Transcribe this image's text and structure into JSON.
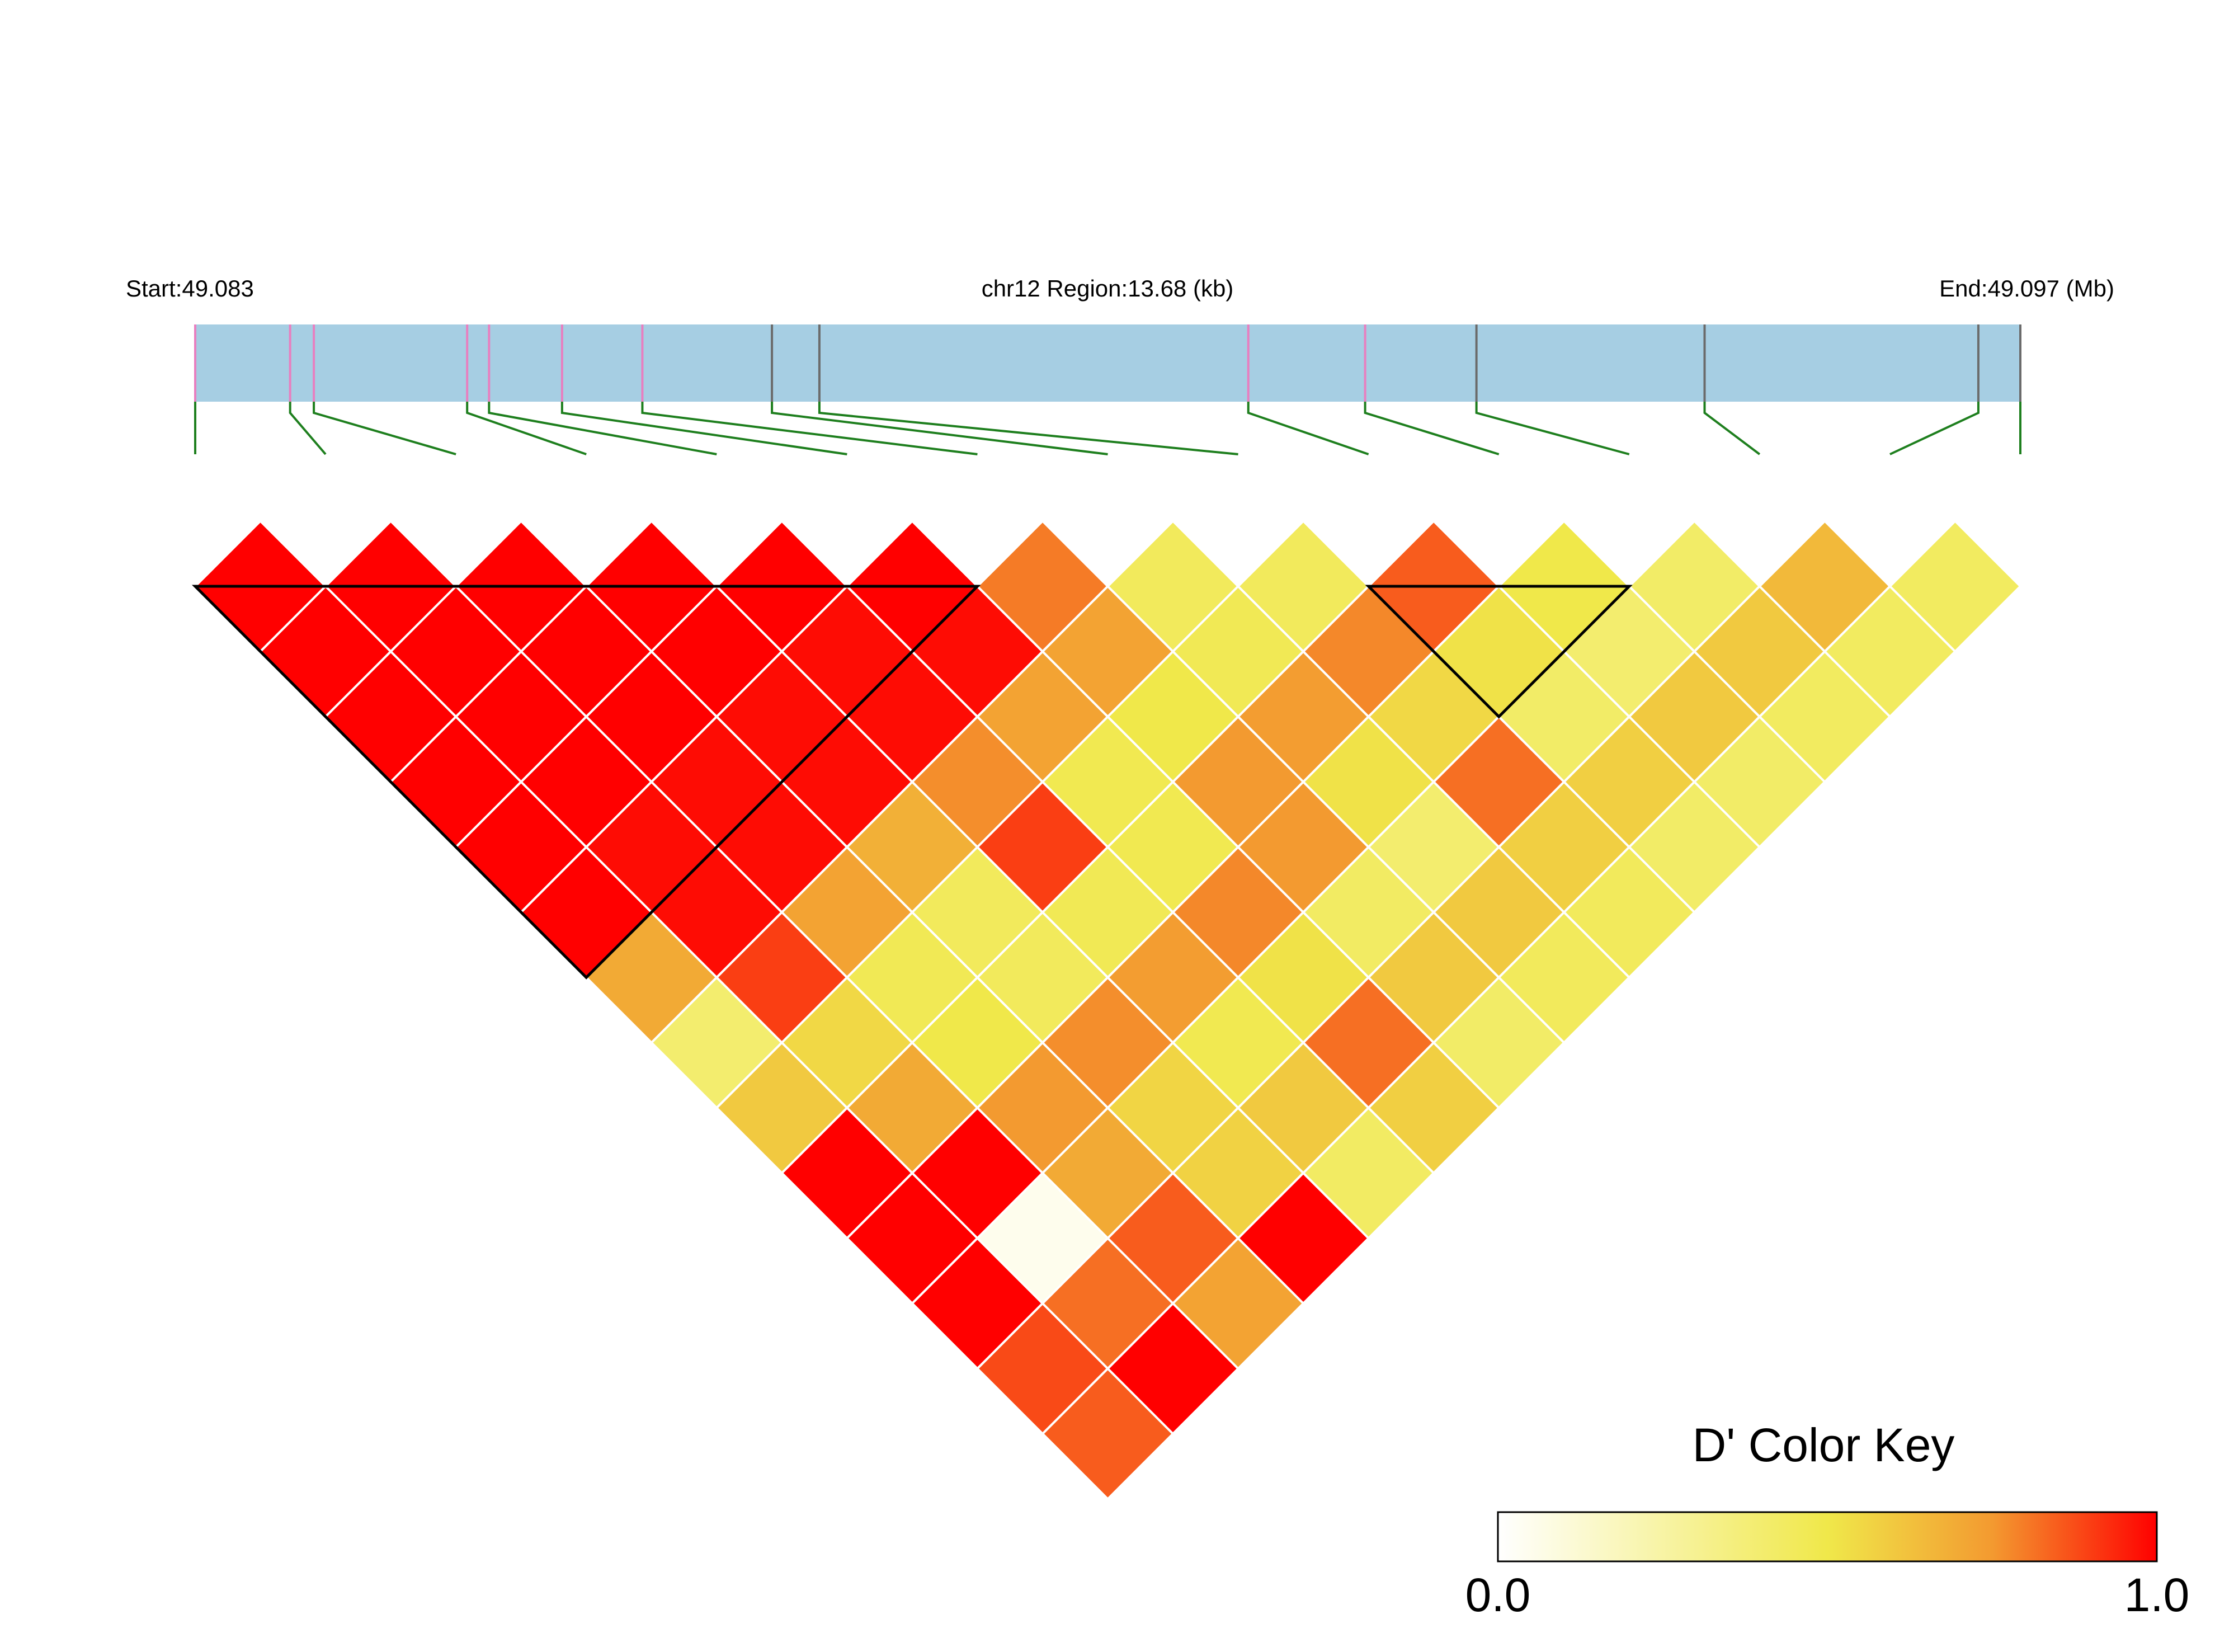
{
  "header": {
    "start_label": "Start:49.083",
    "region_label": "chr12 Region:13.68 (kb)",
    "end_label": "End:49.097 (Mb)"
  },
  "colors": {
    "track": "#A6CEE3",
    "tick_pink": "#E87FC0",
    "tick_gray": "#6B6B6B",
    "connector": "#1E7F1E",
    "cell_border": "#FFFFFF",
    "block_outline": "#000000"
  },
  "legend": {
    "title": "D' Color Key",
    "min_label": "0.0",
    "max_label": "1.0",
    "stops": [
      "#FFFFFF",
      "#F0E84A",
      "#F39A30",
      "#FF0000"
    ]
  },
  "chart_data": {
    "type": "heatmap",
    "title": "",
    "metric": "D'",
    "value_range": [
      0,
      1
    ],
    "chromosome": "chr12",
    "region_kb": 13.68,
    "start_mb": 49.083,
    "end_mb": 49.097,
    "snp_count": 15,
    "snp_positions_frac": [
      0.0,
      0.052,
      0.065,
      0.149,
      0.161,
      0.201,
      0.245,
      0.316,
      0.342,
      0.577,
      0.641,
      0.702,
      0.827,
      0.977,
      1.0
    ],
    "snp_tick_types": [
      "pink",
      "pink",
      "pink",
      "pink",
      "pink",
      "pink",
      "pink",
      "gray",
      "gray",
      "pink",
      "pink",
      "gray",
      "gray",
      "gray",
      "gray"
    ],
    "haplotype_blocks": [
      [
        0,
        6
      ],
      [
        9,
        11
      ]
    ],
    "d_prime": [
      [
        1.0,
        1.0,
        1.0,
        1.0,
        1.0,
        1.0,
        0.7,
        0.4,
        0.6,
        1.0,
        1.0,
        1.0,
        0.88,
        0.85
      ],
      [
        1.0,
        1.0,
        1.0,
        1.0,
        0.98,
        0.98,
        0.9,
        0.55,
        0.7,
        1.0,
        0.05,
        0.82,
        1.0
      ],
      [
        1.0,
        1.0,
        1.0,
        0.98,
        0.98,
        0.72,
        0.47,
        0.5,
        0.75,
        0.7,
        0.85,
        0.72
      ],
      [
        1.0,
        1.0,
        0.98,
        0.98,
        0.68,
        0.45,
        0.45,
        0.77,
        0.56,
        0.57,
        1.0
      ],
      [
        1.0,
        0.98,
        0.98,
        0.77,
        0.9,
        0.47,
        0.74,
        0.48,
        0.6,
        0.43
      ],
      [
        1.0,
        0.98,
        0.72,
        0.48,
        0.48,
        0.78,
        0.52,
        0.82,
        0.58
      ],
      [
        0.8,
        0.72,
        0.5,
        0.75,
        0.75,
        0.43,
        0.6,
        0.42
      ],
      [
        0.45,
        0.47,
        0.74,
        0.52,
        0.4,
        0.6,
        0.45
      ],
      [
        0.45,
        0.78,
        0.55,
        0.82,
        0.58,
        0.45
      ],
      [
        0.85,
        0.52,
        0.42,
        0.58,
        0.42
      ],
      [
        0.5,
        0.4,
        0.6,
        0.42
      ],
      [
        0.42,
        0.6,
        0.44
      ],
      [
        0.65,
        0.44
      ],
      [
        0.44
      ]
    ]
  }
}
